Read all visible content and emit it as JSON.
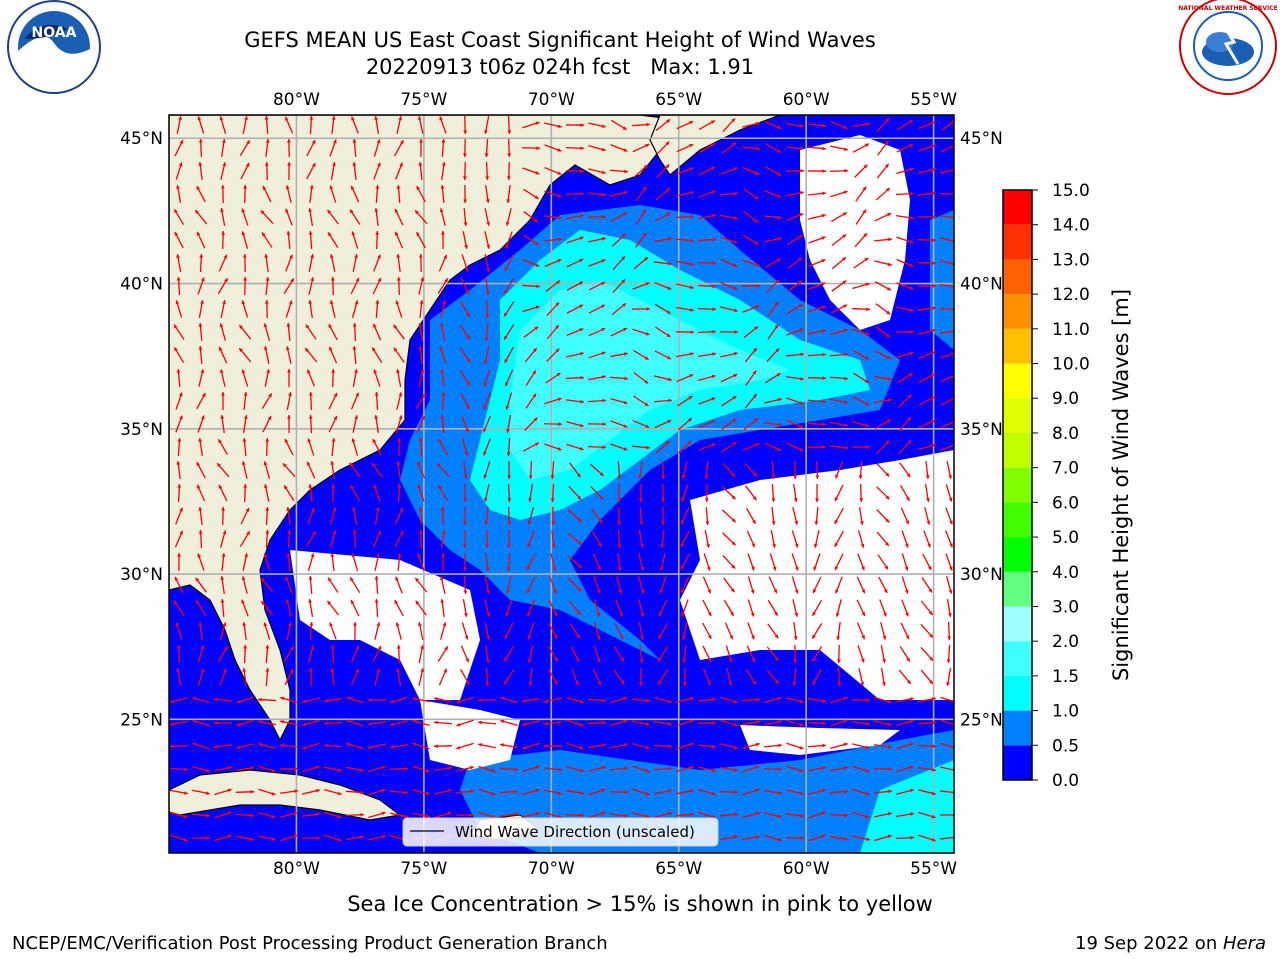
{
  "header": {
    "title_line1": "GEFS MEAN US East Coast Significant Height of Wind Waves",
    "title_line2": "20220913 t06z 024h fcst   Max: 1.91"
  },
  "logos": {
    "left": {
      "name": "noaa-logo",
      "text": "NOAA"
    },
    "right": {
      "name": "nws-logo",
      "text": "NATIONAL WEATHER SERVICE"
    }
  },
  "map": {
    "lon_range": [
      -85,
      -54.2
    ],
    "lat_range": [
      20.4,
      45.8
    ],
    "lon_ticks": [
      -80,
      -75,
      -70,
      -65,
      -60,
      -55
    ],
    "lon_tick_labels": [
      "80°W",
      "75°W",
      "70°W",
      "65°W",
      "60°W",
      "55°W"
    ],
    "lat_ticks": [
      25,
      30,
      35,
      40,
      45
    ],
    "lat_tick_labels": [
      "25°N",
      "30°N",
      "35°N",
      "40°N",
      "45°N"
    ],
    "grid": true,
    "land_color": "#efefdc",
    "arrow_color": "#ff0000",
    "legend_label": "Wind Wave Direction (unscaled)",
    "legend_placement": "bottom-center"
  },
  "colorbar": {
    "label": "Significant Height of Wind Waves [m]",
    "levels": [
      0.0,
      0.5,
      1.0,
      1.5,
      2.0,
      3.0,
      4.0,
      5.0,
      6.0,
      7.0,
      8.0,
      9.0,
      10.0,
      11.0,
      12.0,
      13.0,
      14.0,
      15.0
    ],
    "tick_labels": [
      "0.0",
      "0.5",
      "1.0",
      "1.5",
      "2.0",
      "3.0",
      "4.0",
      "5.0",
      "6.0",
      "7.0",
      "8.0",
      "9.0",
      "10.0",
      "11.0",
      "12.0",
      "13.0",
      "14.0",
      "15.0"
    ],
    "colors": [
      "#0000ff",
      "#0080ff",
      "#00ffff",
      "#40ffff",
      "#a0ffff",
      "#60ff80",
      "#00ff00",
      "#40ff00",
      "#80ff00",
      "#c0ff00",
      "#e0ff00",
      "#ffff00",
      "#ffc000",
      "#ff9000",
      "#ff6000",
      "#ff3000",
      "#ff0000"
    ]
  },
  "subtitle": "Sea Ice Concentration > 15% is shown in pink to yellow",
  "footer": {
    "left": "NCEP/EMC/Verification Post Processing Product Generation Branch",
    "right_date": "19 Sep 2022 on ",
    "right_host": "Hera"
  }
}
